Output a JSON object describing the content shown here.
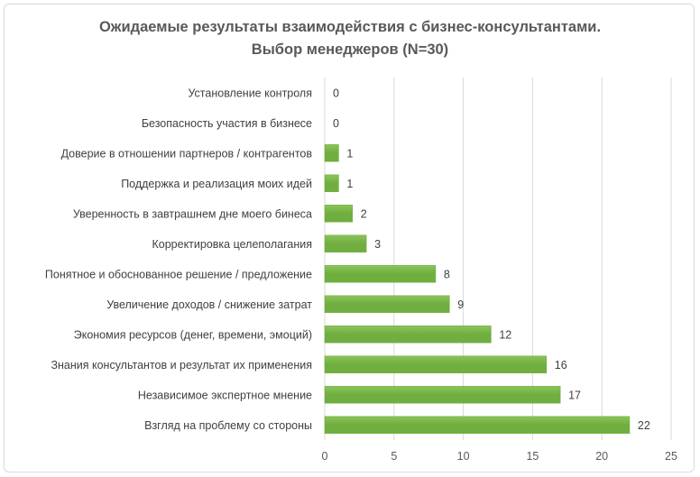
{
  "chart_data": {
    "type": "bar",
    "orientation": "horizontal",
    "title_line1": "Ожидаемые результаты взаимодействия с бизнес-консультантами.",
    "title_line2": "Выбор менеджеров (N=30)",
    "categories": [
      "Установление контроля",
      "Безопасность участия в бизнесе",
      "Доверие в отношении партнеров / контрагентов",
      "Поддержка и реализация моих идей",
      "Уверенность в завтрашнем дне моего бинеса",
      "Корректировка целеполагания",
      "Понятное и обоснованное решение / предложение",
      "Увеличение доходов / снижение затрат",
      "Экономия ресурсов (денег, времени, эмоций)",
      "Знания консультантов и результат их применения",
      "Независимое экспертное мнение",
      "Взгляд на проблему со стороны"
    ],
    "values": [
      0,
      0,
      1,
      1,
      2,
      3,
      8,
      9,
      12,
      16,
      17,
      22
    ],
    "xlim": [
      0,
      25
    ],
    "xticks": [
      0,
      5,
      10,
      15,
      20,
      25
    ],
    "grid": true,
    "bar_color": "#6fae3f",
    "bar_gradient_light": "#8cc45a",
    "gridline_color": "#d9d9d9",
    "data_labels": true
  }
}
